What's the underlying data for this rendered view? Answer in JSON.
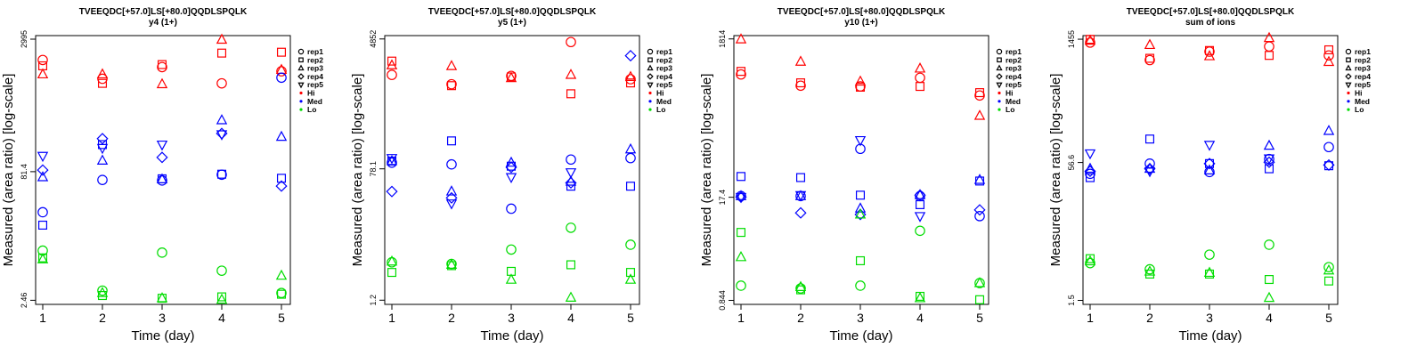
{
  "colors": {
    "Hi": "#ff0000",
    "Med": "#0000ff",
    "Lo": "#00dd00"
  },
  "legend": [
    {
      "label": "rep1",
      "shape": "circle"
    },
    {
      "label": "rep2",
      "shape": "square"
    },
    {
      "label": "rep3",
      "shape": "triangle-up"
    },
    {
      "label": "rep4",
      "shape": "diamond"
    },
    {
      "label": "rep5",
      "shape": "triangle-down"
    },
    {
      "label": "Hi",
      "shape": "dot",
      "color": "#ff0000"
    },
    {
      "label": "Med",
      "shape": "dot",
      "color": "#0000ff"
    },
    {
      "label": "Lo",
      "shape": "dot",
      "color": "#00dd00"
    }
  ],
  "chart_data": [
    {
      "type": "scatter",
      "title": "TVEEQDC[+57.0]LS[+80.0]QQDLSPQLK",
      "subtitle": "y4 (1+)",
      "xlabel": "Time (day)",
      "ylabel": "Measured (area ratio) [log-scale]",
      "yscale": "log",
      "x_ticks": [
        "1",
        "2",
        "3",
        "4",
        "5"
      ],
      "y_ticks": [
        {
          "value": 2995,
          "label": "2995"
        },
        {
          "value": 81.4,
          "label": "81.4"
        },
        {
          "value": 2.46,
          "label": "2.46"
        }
      ],
      "ylim": [
        2.2,
        3300
      ],
      "series": [
        {
          "group": "Hi",
          "rep": "rep1",
          "x": [
            1,
            2,
            3,
            4,
            5
          ],
          "y": [
            1700,
            1020,
            1400,
            900,
            1250
          ]
        },
        {
          "group": "Hi",
          "rep": "rep2",
          "x": [
            1,
            2,
            3,
            4,
            5
          ],
          "y": [
            1450,
            900,
            1500,
            2050,
            2100
          ]
        },
        {
          "group": "Hi",
          "rep": "rep3",
          "x": [
            1,
            2,
            3,
            4,
            5
          ],
          "y": [
            1150,
            1150,
            880,
            2950,
            1300
          ]
        },
        {
          "group": "Med",
          "rep": "rep1",
          "x": [
            1,
            2,
            3,
            4,
            5
          ],
          "y": [
            27,
            65,
            64,
            75,
            1050
          ]
        },
        {
          "group": "Med",
          "rep": "rep2",
          "x": [
            1,
            2,
            3,
            4,
            5
          ],
          "y": [
            19,
            170,
            67,
            76,
            68
          ]
        },
        {
          "group": "Med",
          "rep": "rep3",
          "x": [
            1,
            2,
            3,
            4,
            5
          ],
          "y": [
            70,
            110,
            66,
            330,
            210
          ]
        },
        {
          "group": "Med",
          "rep": "rep4",
          "x": [
            1,
            2,
            3,
            4,
            5
          ],
          "y": [
            85,
            200,
            120,
            230,
            55
          ]
        },
        {
          "group": "Med",
          "rep": "rep5",
          "x": [
            1,
            2,
            3,
            4,
            5
          ],
          "y": [
            125,
            155,
            170,
            225,
            null
          ]
        },
        {
          "group": "Lo",
          "rep": "rep1",
          "x": [
            1,
            2,
            3,
            4,
            5
          ],
          "y": [
            9.5,
            3.2,
            9.0,
            5.5,
            3.0
          ]
        },
        {
          "group": "Lo",
          "rep": "rep2",
          "x": [
            1,
            2,
            3,
            4,
            5
          ],
          "y": [
            7.8,
            2.8,
            2.6,
            2.7,
            2.9
          ]
        },
        {
          "group": "Lo",
          "rep": "rep3",
          "x": [
            1,
            2,
            3,
            4,
            5
          ],
          "y": [
            7.5,
            3.0,
            2.6,
            2.5,
            4.8
          ]
        }
      ]
    },
    {
      "type": "scatter",
      "title": "TVEEQDC[+57.0]LS[+80.0]QQDLSPQLK",
      "subtitle": "y5 (1+)",
      "xlabel": "Time (day)",
      "ylabel": "Measured (area ratio) [log-scale]",
      "yscale": "log",
      "x_ticks": [
        "1",
        "2",
        "3",
        "4",
        "5"
      ],
      "y_ticks": [
        {
          "value": 4852,
          "label": "4852"
        },
        {
          "value": 78.1,
          "label": "78.1"
        },
        {
          "value": 1.2,
          "label": "1.2"
        }
      ],
      "ylim": [
        1.05,
        5400
      ],
      "series": [
        {
          "group": "Hi",
          "rep": "rep1",
          "x": [
            1,
            2,
            3,
            4,
            5
          ],
          "y": [
            1550,
            1150,
            1500,
            4400,
            1350
          ]
        },
        {
          "group": "Hi",
          "rep": "rep2",
          "x": [
            1,
            2,
            3,
            4,
            5
          ],
          "y": [
            2400,
            1100,
            1450,
            850,
            1200
          ]
        },
        {
          "group": "Hi",
          "rep": "rep3",
          "x": [
            1,
            2,
            3,
            4,
            5
          ],
          "y": [
            2100,
            2050,
            1400,
            1550,
            1450
          ]
        },
        {
          "group": "Med",
          "rep": "rep1",
          "x": [
            1,
            2,
            3,
            4,
            5
          ],
          "y": [
            95,
            90,
            22,
            105,
            110
          ]
        },
        {
          "group": "Med",
          "rep": "rep2",
          "x": [
            1,
            2,
            3,
            4,
            5
          ],
          "y": [
            100,
            190,
            85,
            45,
            45
          ]
        },
        {
          "group": "Med",
          "rep": "rep3",
          "x": [
            1,
            2,
            3,
            4,
            5
          ],
          "y": [
            100,
            38,
            95,
            52,
            145
          ]
        },
        {
          "group": "Med",
          "rep": "rep4",
          "x": [
            1,
            2,
            3,
            4,
            5
          ],
          "y": [
            38,
            31,
            82,
            50,
            2850
          ]
        },
        {
          "group": "Med",
          "rep": "rep5",
          "x": [
            1,
            2,
            3,
            4,
            5
          ],
          "y": [
            110,
            26,
            60,
            70,
            null
          ]
        },
        {
          "group": "Lo",
          "rep": "rep1",
          "x": [
            1,
            2,
            3,
            4,
            5
          ],
          "y": [
            4.0,
            3.8,
            6.0,
            12,
            7.0
          ]
        },
        {
          "group": "Lo",
          "rep": "rep2",
          "x": [
            1,
            2,
            3,
            4,
            5
          ],
          "y": [
            2.9,
            3.6,
            3.0,
            3.7,
            2.9
          ]
        },
        {
          "group": "Lo",
          "rep": "rep3",
          "x": [
            1,
            2,
            3,
            4,
            5
          ],
          "y": [
            4.1,
            3.7,
            2.3,
            1.3,
            2.3
          ]
        }
      ]
    },
    {
      "type": "scatter",
      "title": "TVEEQDC[+57.0]LS[+80.0]QQDLSPQLK",
      "subtitle": "y10 (1+)",
      "xlabel": "Time (day)",
      "ylabel": "Measured (area ratio) [log-scale]",
      "yscale": "log",
      "x_ticks": [
        "1",
        "2",
        "3",
        "4",
        "5"
      ],
      "y_ticks": [
        {
          "value": 1814,
          "label": "1814"
        },
        {
          "value": 17.4,
          "label": "17.4"
        },
        {
          "value": 0.844,
          "label": "0.844"
        }
      ],
      "ylim": [
        0.75,
        2000
      ],
      "series": [
        {
          "group": "Hi",
          "rep": "rep1",
          "x": [
            1,
            2,
            3,
            4,
            5
          ],
          "y": [
            640,
            460,
            450,
            580,
            345
          ]
        },
        {
          "group": "Hi",
          "rep": "rep2",
          "x": [
            1,
            2,
            3,
            4,
            5
          ],
          "y": [
            700,
            500,
            440,
            450,
            375
          ]
        },
        {
          "group": "Hi",
          "rep": "rep3",
          "x": [
            1,
            2,
            3,
            4,
            5
          ],
          "y": [
            1790,
            930,
            520,
            760,
            190
          ]
        },
        {
          "group": "Med",
          "rep": "rep1",
          "x": [
            1,
            2,
            3,
            4,
            5
          ],
          "y": [
            18,
            18,
            72,
            18,
            10
          ]
        },
        {
          "group": "Med",
          "rep": "rep2",
          "x": [
            1,
            2,
            3,
            4,
            5
          ],
          "y": [
            32,
            31,
            18.5,
            14,
            28
          ]
        },
        {
          "group": "Med",
          "rep": "rep3",
          "x": [
            1,
            2,
            3,
            4,
            5
          ],
          "y": [
            18,
            18,
            12.5,
            18.5,
            29
          ]
        },
        {
          "group": "Med",
          "rep": "rep4",
          "x": [
            1,
            2,
            3,
            4,
            5
          ],
          "y": [
            17.5,
            11,
            10.5,
            18.5,
            12
          ]
        },
        {
          "group": "Med",
          "rep": "rep5",
          "x": [
            1,
            2,
            3,
            4,
            5
          ],
          "y": [
            17.5,
            18.5,
            93,
            10,
            null
          ]
        },
        {
          "group": "Lo",
          "rep": "rep1",
          "x": [
            1,
            2,
            3,
            4,
            5
          ],
          "y": [
            1.3,
            1.2,
            1.3,
            6.5,
            1.4
          ]
        },
        {
          "group": "Lo",
          "rep": "rep2",
          "x": [
            1,
            2,
            3,
            4,
            5
          ],
          "y": [
            6.2,
            1.15,
            2.7,
            0.95,
            0.86
          ]
        },
        {
          "group": "Lo",
          "rep": "rep3",
          "x": [
            1,
            2,
            3,
            4,
            5
          ],
          "y": [
            3.0,
            1.25,
            10.5,
            0.9,
            1.4
          ]
        }
      ]
    },
    {
      "type": "scatter",
      "title": "TVEEQDC[+57.0]LS[+80.0]QQDLSPQLK",
      "subtitle": "sum of ions",
      "xlabel": "Time (day)",
      "ylabel": "Measured (area ratio) [log-scale]",
      "yscale": "log",
      "x_ticks": [
        "1",
        "2",
        "3",
        "4",
        "5"
      ],
      "y_ticks": [
        {
          "value": 1455,
          "label": "1455"
        },
        {
          "value": 56.6,
          "label": "56.6"
        },
        {
          "value": 1.5,
          "label": "1.5"
        }
      ],
      "ylim": [
        1.35,
        1600
      ],
      "series": [
        {
          "group": "Hi",
          "rep": "rep1",
          "x": [
            1,
            2,
            3,
            4,
            5
          ],
          "y": [
            1330,
            840,
            1050,
            1200,
            950
          ]
        },
        {
          "group": "Hi",
          "rep": "rep2",
          "x": [
            1,
            2,
            3,
            4,
            5
          ],
          "y": [
            1450,
            880,
            1080,
            950,
            1100
          ]
        },
        {
          "group": "Hi",
          "rep": "rep3",
          "x": [
            1,
            2,
            3,
            4,
            5
          ],
          "y": [
            1400,
            1250,
            930,
            1500,
            800
          ]
        },
        {
          "group": "Med",
          "rep": "rep1",
          "x": [
            1,
            2,
            3,
            4,
            5
          ],
          "y": [
            42,
            55,
            44,
            62,
            85
          ]
        },
        {
          "group": "Med",
          "rep": "rep2",
          "x": [
            1,
            2,
            3,
            4,
            5
          ],
          "y": [
            38,
            105,
            55,
            48,
            52
          ]
        },
        {
          "group": "Med",
          "rep": "rep3",
          "x": [
            1,
            2,
            3,
            4,
            5
          ],
          "y": [
            48,
            48,
            46,
            88,
            130
          ]
        },
        {
          "group": "Med",
          "rep": "rep4",
          "x": [
            1,
            2,
            3,
            4,
            5
          ],
          "y": [
            45,
            48,
            55,
            57,
            53
          ]
        },
        {
          "group": "Med",
          "rep": "rep5",
          "x": [
            1,
            2,
            3,
            4,
            5
          ],
          "y": [
            72,
            45,
            90,
            63,
            null
          ]
        },
        {
          "group": "Lo",
          "rep": "rep1",
          "x": [
            1,
            2,
            3,
            4,
            5
          ],
          "y": [
            4.0,
            3.4,
            5.0,
            6.5,
            3.6
          ]
        },
        {
          "group": "Lo",
          "rep": "rep2",
          "x": [
            1,
            2,
            3,
            4,
            5
          ],
          "y": [
            4.5,
            3.0,
            3.0,
            2.6,
            2.5
          ]
        },
        {
          "group": "Lo",
          "rep": "rep3",
          "x": [
            1,
            2,
            3,
            4,
            5
          ],
          "y": [
            4.2,
            3.2,
            3.1,
            1.6,
            3.3
          ]
        }
      ]
    }
  ]
}
